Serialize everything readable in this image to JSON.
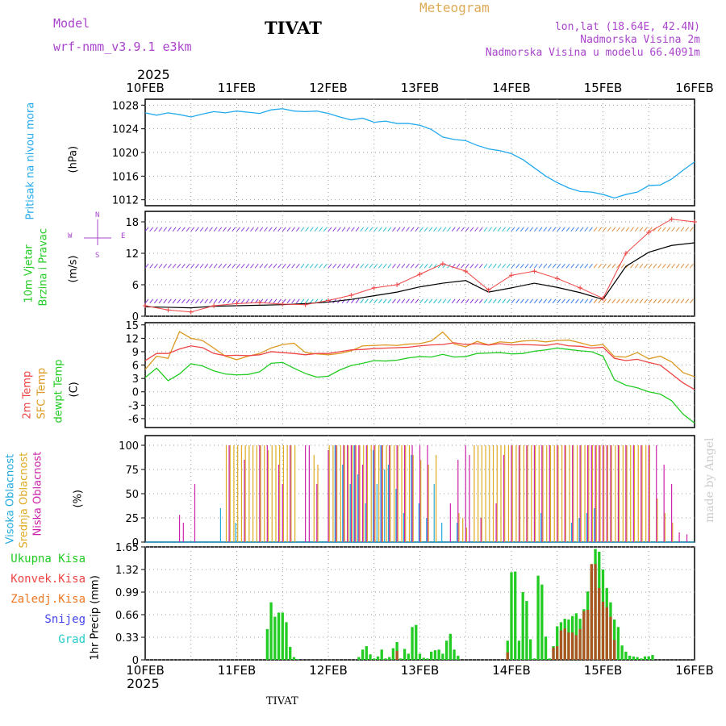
{
  "header": {
    "model_label": "Model",
    "model_name": "wrf-nmm_v3.9.1  e3km",
    "station": "TIVAT",
    "chart_type": "Meteogram",
    "location": "lon,lat (18.64E, 42.4N)",
    "altitude": "Nadmorska Visina 2m",
    "model_altitude": "Nadmorska Visina u modelu 66.4091m"
  },
  "footer": {
    "station": "TIVAT",
    "credit": "made by Angel"
  },
  "colors": {
    "pressure": "#22aaee",
    "temp2m": "#ee4444",
    "sfc": "#dd9922",
    "dew": "#22cc22",
    "wind_green": "#22cc22",
    "wind_unit": "#000000",
    "wind_dir": "#aa44cc",
    "high_cloud": "#22aadd",
    "mid_cloud": "#ddaa22",
    "low_cloud": "#cc22aa",
    "total_precip": "#22cc22",
    "conv_precip": "#ee4444",
    "frozen_precip": "#ee7722",
    "snow": "#4444ee",
    "hail": "#22cccc",
    "brown_bar": "#aa5522"
  },
  "chart_data": {
    "type": "meteogram",
    "time_axis": {
      "year": "2025",
      "ticks": [
        "10FEB",
        "11FEB",
        "12FEB",
        "13FEB",
        "14FEB",
        "15FEB",
        "16FEB"
      ],
      "hours": 144
    },
    "pressure": {
      "label": "Pritisak na nivou mora",
      "unit": "(hPa)",
      "ylim": [
        1011,
        1029
      ],
      "yticks": [
        "1028",
        "1024",
        "1020",
        "1016",
        "1012"
      ],
      "x": [
        0,
        3,
        6,
        9,
        12,
        15,
        18,
        21,
        24,
        27,
        30,
        33,
        36,
        39,
        42,
        45,
        48,
        51,
        54,
        57,
        60,
        63,
        66,
        69,
        72,
        75,
        78,
        81,
        84,
        87,
        90,
        93,
        96,
        99,
        102,
        105,
        108,
        111,
        114,
        117,
        120,
        123,
        126,
        129,
        132,
        135,
        138,
        141,
        144
      ],
      "values": [
        1026.7,
        1026.3,
        1026.7,
        1026.4,
        1026.0,
        1026.5,
        1026.9,
        1026.7,
        1027.0,
        1026.8,
        1026.6,
        1027.2,
        1027.4,
        1027.0,
        1026.9,
        1027.0,
        1026.6,
        1026.0,
        1025.5,
        1025.8,
        1025.1,
        1025.3,
        1024.9,
        1024.9,
        1024.6,
        1023.9,
        1022.6,
        1022.2,
        1022.0,
        1021.2,
        1020.6,
        1020.3,
        1019.8,
        1018.8,
        1017.4,
        1016.0,
        1014.9,
        1014.0,
        1013.4,
        1013.3,
        1012.9,
        1012.3,
        1012.9,
        1013.3,
        1014.4,
        1014.5,
        1015.5,
        1017.0,
        1018.4
      ]
    },
    "wind": {
      "label": "10m Vjetar",
      "label2": "Brzina i Pravac",
      "unit": "(m/s)",
      "ylim": [
        0,
        20
      ],
      "yticks": [
        "18",
        "12",
        "6",
        "0"
      ],
      "compass": [
        "N",
        "S",
        "W",
        "E"
      ],
      "speed_x": [
        0,
        6,
        12,
        18,
        24,
        30,
        36,
        42,
        48,
        54,
        60,
        66,
        72,
        78,
        84,
        90,
        96,
        102,
        108,
        114,
        120,
        126,
        132,
        138,
        144
      ],
      "speed_10m": [
        1.8,
        1.7,
        1.6,
        1.9,
        2.0,
        2.1,
        2.2,
        2.4,
        2.7,
        3.2,
        3.9,
        4.6,
        5.6,
        6.3,
        6.8,
        4.6,
        5.4,
        6.3,
        5.5,
        4.5,
        3.2,
        9.5,
        12.2,
        13.5,
        14.0
      ],
      "gust_x": [
        0,
        6,
        12,
        18,
        24,
        30,
        36,
        42,
        48,
        54,
        60,
        66,
        72,
        78,
        84,
        90,
        96,
        102,
        108,
        114,
        120,
        126,
        132,
        138,
        144
      ],
      "gust": [
        2.0,
        1.2,
        0.8,
        2.0,
        2.4,
        2.6,
        2.3,
        2.2,
        3.0,
        4.0,
        5.4,
        6.0,
        8.0,
        10.0,
        8.6,
        5.0,
        7.8,
        8.6,
        7.2,
        5.4,
        3.4,
        12.0,
        16.0,
        18.5,
        18.0
      ]
    },
    "temperature": {
      "label1": "2m Temp",
      "label2": "SFC Temp",
      "label3": "dewpt Temp",
      "unit": "(C)",
      "ylim": [
        -8,
        15.5
      ],
      "yticks": [
        "15",
        "12",
        "9",
        "6",
        "3",
        "0",
        "-3",
        "-6"
      ],
      "x": [
        0,
        3,
        6,
        9,
        12,
        15,
        18,
        21,
        24,
        27,
        30,
        33,
        36,
        39,
        42,
        45,
        48,
        51,
        54,
        57,
        60,
        63,
        66,
        69,
        72,
        75,
        78,
        81,
        84,
        87,
        90,
        93,
        96,
        99,
        102,
        105,
        108,
        111,
        114,
        117,
        120,
        123,
        126,
        129,
        132,
        135,
        138,
        141,
        144
      ],
      "temp_2m": [
        7.0,
        8.6,
        8.6,
        9.6,
        10.3,
        9.9,
        8.6,
        8.1,
        8.2,
        8.1,
        8.3,
        9.0,
        8.8,
        8.6,
        8.3,
        8.6,
        8.6,
        9.0,
        9.4,
        9.5,
        9.7,
        9.8,
        9.9,
        10.0,
        10.3,
        10.5,
        10.6,
        11.0,
        10.6,
        10.8,
        10.5,
        10.8,
        10.5,
        10.6,
        10.5,
        10.4,
        10.8,
        10.3,
        10.2,
        9.8,
        10.0,
        7.5,
        7.0,
        7.3,
        6.6,
        6.0,
        4.0,
        2.0,
        0.5
      ],
      "sfc": [
        5.0,
        8.0,
        7.5,
        13.5,
        12.0,
        11.5,
        9.8,
        8.0,
        7.2,
        8.0,
        8.6,
        9.8,
        10.6,
        10.9,
        8.8,
        8.5,
        8.3,
        8.6,
        9.2,
        10.3,
        10.4,
        10.5,
        10.4,
        10.7,
        10.8,
        11.4,
        13.4,
        10.7,
        10.1,
        11.3,
        10.5,
        11.2,
        11.0,
        11.4,
        11.5,
        11.2,
        11.5,
        11.6,
        11.0,
        10.3,
        10.6,
        7.9,
        7.8,
        8.8,
        7.4,
        8.0,
        6.7,
        4.3,
        3.4
      ],
      "dewpt": [
        3.2,
        5.3,
        2.5,
        4.0,
        6.3,
        5.8,
        4.7,
        4.0,
        3.8,
        3.9,
        4.5,
        6.4,
        6.6,
        5.3,
        4.1,
        3.3,
        3.5,
        4.9,
        5.9,
        6.4,
        7.0,
        6.9,
        7.1,
        7.6,
        7.9,
        7.8,
        8.4,
        7.8,
        7.9,
        8.6,
        8.7,
        8.8,
        8.5,
        8.6,
        9.1,
        9.4,
        9.8,
        9.5,
        9.2,
        9.0,
        8.0,
        2.7,
        1.5,
        0.9,
        0.0,
        -0.5,
        -2.0,
        -5.0,
        -7.0
      ]
    },
    "clouds": {
      "label1": "Visoka Oblacnost",
      "label2": "Srednja Oblacnost",
      "label3": "Niska Oblacnost",
      "unit": "(%)",
      "ylim": [
        0,
        100
      ],
      "yticks": [
        "100",
        "75",
        "50",
        "25",
        "0"
      ],
      "high": {
        "x": [
          20,
          24,
          50,
          52,
          54,
          55,
          56,
          58,
          60,
          61,
          62,
          63,
          64,
          66,
          68,
          70,
          72,
          74,
          76,
          78,
          82,
          104,
          112,
          114,
          116,
          118
        ],
        "values": [
          35,
          20,
          100,
          80,
          60,
          100,
          70,
          40,
          95,
          60,
          100,
          75,
          80,
          55,
          30,
          90,
          40,
          25,
          60,
          20,
          20,
          30,
          20,
          25,
          30,
          35
        ]
      },
      "mid": {
        "x": [
          21,
          22,
          23,
          24,
          25,
          26,
          27,
          28,
          29,
          30,
          31,
          32,
          33,
          34,
          35,
          36,
          37,
          38,
          39,
          44,
          45,
          48,
          49,
          50,
          51,
          52,
          53,
          54,
          55,
          56,
          57,
          58,
          59,
          60,
          61,
          62,
          63,
          64,
          65,
          66,
          67,
          68,
          69,
          70,
          72,
          74,
          76,
          82,
          83,
          84,
          86,
          87,
          88,
          89,
          90,
          91,
          92,
          93,
          94,
          95,
          96,
          97,
          98,
          99,
          100,
          101,
          102,
          103,
          104,
          105,
          106,
          107,
          108,
          109,
          110,
          111,
          112,
          113,
          114,
          115,
          116,
          117,
          118,
          119,
          120,
          121,
          122,
          123,
          124,
          125,
          126,
          127,
          128,
          129,
          130,
          131,
          132,
          134,
          136,
          138
        ],
        "values": [
          100,
          100,
          100,
          100,
          100,
          100,
          100,
          100,
          100,
          100,
          100,
          95,
          100,
          100,
          100,
          100,
          100,
          100,
          100,
          90,
          80,
          100,
          100,
          100,
          100,
          100,
          100,
          100,
          100,
          100,
          100,
          100,
          100,
          100,
          100,
          100,
          100,
          100,
          100,
          100,
          100,
          100,
          100,
          90,
          85,
          80,
          90,
          30,
          25,
          15,
          100,
          100,
          100,
          100,
          100,
          100,
          100,
          100,
          100,
          100,
          100,
          100,
          100,
          100,
          100,
          100,
          100,
          100,
          100,
          100,
          100,
          100,
          100,
          100,
          100,
          100,
          100,
          100,
          100,
          100,
          100,
          100,
          100,
          100,
          100,
          100,
          100,
          100,
          100,
          100,
          100,
          100,
          100,
          100,
          100,
          100,
          100,
          45,
          30,
          20
        ]
      },
      "low": {
        "x": [
          9,
          10,
          13,
          22,
          26,
          30,
          32,
          35,
          36,
          38,
          42,
          43,
          45,
          48,
          50,
          52,
          53,
          54,
          55,
          56,
          57,
          58,
          60,
          62,
          64,
          66,
          68,
          70,
          72,
          74,
          80,
          82,
          84,
          85,
          88,
          92,
          94,
          96,
          98,
          100,
          102,
          104,
          106,
          108,
          110,
          112,
          114,
          116,
          117,
          118,
          119,
          120,
          121,
          122,
          124,
          126,
          128,
          130,
          132,
          134,
          136,
          138,
          140,
          142
        ],
        "values": [
          28,
          20,
          60,
          100,
          85,
          100,
          100,
          80,
          60,
          100,
          100,
          100,
          60,
          95,
          100,
          100,
          100,
          100,
          100,
          100,
          80,
          100,
          100,
          100,
          100,
          100,
          100,
          100,
          100,
          100,
          40,
          85,
          100,
          90,
          25,
          40,
          90,
          100,
          100,
          100,
          100,
          100,
          100,
          100,
          100,
          100,
          100,
          100,
          100,
          100,
          100,
          100,
          100,
          100,
          100,
          100,
          100,
          100,
          100,
          100,
          80,
          60,
          10,
          8
        ]
      }
    },
    "precip": {
      "labels": [
        "Ukupna Kisa",
        "Konvek.Kisa",
        "Zaledj.Kisa",
        "Snijeg",
        "Grad"
      ],
      "ylabel": "1hr Precip (mm)",
      "ylim": [
        0,
        1.65
      ],
      "yticks": [
        "1.65",
        "1.32",
        "0.99",
        "0.66",
        "0.33",
        "0"
      ],
      "x": [
        32.0,
        33.0,
        34.0,
        35.0,
        36.0,
        37.0,
        38.0,
        39.0,
        40.0,
        41.0,
        56.0,
        57.0,
        58.0,
        59.0,
        60.0,
        61.0,
        62.0,
        63.0,
        64.0,
        65.0,
        66.0,
        67.0,
        68.0,
        69.0,
        70.0,
        71.0,
        72.0,
        73.0,
        74.0,
        75.0,
        76.0,
        77.0,
        78.0,
        79.0,
        80.0,
        81.0,
        82.0,
        95.0,
        96.0,
        97.0,
        98.0,
        99.0,
        100.0,
        101.0,
        102.0,
        103.0,
        104.0,
        105.0,
        106.0,
        107.0,
        108.0,
        109.0,
        110.0,
        111.0,
        112.0,
        113.0,
        114.0,
        115.0,
        116.0,
        117.0,
        118.0,
        119.0,
        120.0,
        121.0,
        122.0,
        123.0,
        124.0,
        125.0,
        126.0,
        127.0,
        128.0,
        129.0,
        130.0,
        131.0,
        132.0,
        133.0
      ],
      "total": [
        0.45,
        0.84,
        0.63,
        0.69,
        0.69,
        0.55,
        0.19,
        0.04,
        0.01,
        0.0,
        0.04,
        0.15,
        0.2,
        0.08,
        0.02,
        0.05,
        0.15,
        0.02,
        0.04,
        0.17,
        0.26,
        0.02,
        0.16,
        0.09,
        0.48,
        0.51,
        0.09,
        0.03,
        0.02,
        0.12,
        0.14,
        0.15,
        0.09,
        0.28,
        0.38,
        0.15,
        0.06,
        0.28,
        1.28,
        1.29,
        0.28,
        0.99,
        0.86,
        0.3,
        0.02,
        1.23,
        1.1,
        0.34,
        0.02,
        0.2,
        0.49,
        0.55,
        0.6,
        0.59,
        0.64,
        0.68,
        0.6,
        0.74,
        1.0,
        1.28,
        1.62,
        1.58,
        1.32,
        1.05,
        0.84,
        0.59,
        0.48,
        0.21,
        0.12,
        0.06,
        0.05,
        0.04,
        0.02,
        0.05,
        0.05,
        0.07
      ],
      "conv": [
        0.0,
        0.0,
        0.0,
        0.0,
        0.0,
        0.0,
        0.0,
        0.0,
        0.0,
        0.0,
        0.0,
        0.0,
        0.0,
        0.0,
        0.0,
        0.0,
        0.0,
        0.0,
        0.0,
        0.0,
        0.13,
        0.0,
        0.0,
        0.0,
        0.0,
        0.0,
        0.0,
        0.0,
        0.0,
        0.0,
        0.0,
        0.0,
        0.0,
        0.0,
        0.0,
        0.0,
        0.0,
        0.11,
        0.0,
        0.0,
        0.0,
        0.0,
        0.0,
        0.0,
        0.0,
        0.0,
        0.0,
        0.0,
        0.0,
        0.18,
        0.2,
        0.43,
        0.46,
        0.4,
        0.4,
        0.36,
        0.45,
        0.71,
        0.73,
        1.4,
        1.4,
        1.05,
        0.85,
        0.77,
        0.63,
        0.29,
        0.0,
        0.0,
        0.0,
        0.0,
        0.0,
        0.0,
        0.0,
        0.0,
        0.0,
        0.0
      ]
    }
  }
}
